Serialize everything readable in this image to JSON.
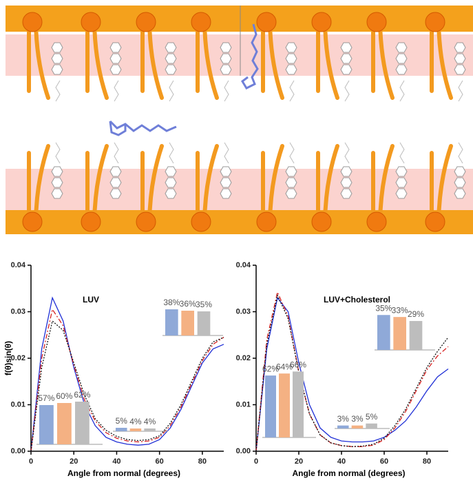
{
  "chart_data": [
    {
      "type": "line",
      "title": "LUV",
      "y_label": "f(θ)sin(θ)",
      "x_label": "Angle from normal (degrees)",
      "xlim": [
        0,
        90
      ],
      "ylim": [
        0,
        0.04
      ],
      "xticks": [
        0,
        20,
        40,
        60,
        80
      ],
      "yticks": [
        {
          "value": 0,
          "label": "0.00"
        },
        {
          "value": 0.01,
          "label": "0.01"
        },
        {
          "value": 0.02,
          "label": "0.02"
        },
        {
          "value": 0.03,
          "label": "0.03"
        },
        {
          "value": 0.04,
          "label": "0.04"
        }
      ],
      "x": [
        0,
        5,
        10,
        15,
        20,
        25,
        30,
        35,
        40,
        45,
        50,
        55,
        60,
        65,
        70,
        75,
        80,
        85,
        90
      ],
      "series": [
        {
          "color": "#1f2fd6",
          "dash": "solid",
          "values": [
            0,
            0.022,
            0.033,
            0.028,
            0.018,
            0.01,
            0.0055,
            0.003,
            0.002,
            0.0015,
            0.0013,
            0.0015,
            0.0025,
            0.005,
            0.009,
            0.014,
            0.019,
            0.022,
            0.023
          ]
        },
        {
          "color": "#d62020",
          "dash": "dashdot",
          "values": [
            0,
            0.02,
            0.0305,
            0.027,
            0.0185,
            0.011,
            0.0065,
            0.004,
            0.0028,
            0.0022,
            0.002,
            0.0022,
            0.003,
            0.0055,
            0.0095,
            0.0145,
            0.0195,
            0.023,
            0.0245
          ]
        },
        {
          "color": "#111111",
          "dash": "dotted",
          "values": [
            0,
            0.018,
            0.028,
            0.026,
            0.019,
            0.012,
            0.007,
            0.0045,
            0.0032,
            0.0025,
            0.0023,
            0.0025,
            0.0033,
            0.006,
            0.01,
            0.015,
            0.02,
            0.0235,
            0.0245
          ]
        }
      ],
      "inset_colors": [
        "#8fa9d8",
        "#f4b183",
        "#bdbdbd"
      ],
      "insets": [
        {
          "values": [
            57,
            60,
            62
          ],
          "value_labels": [
            "57%",
            "60%",
            "62%"
          ]
        },
        {
          "values": [
            5,
            4,
            4
          ],
          "value_labels": [
            "5%",
            "4%",
            "4%"
          ]
        },
        {
          "values": [
            38,
            36,
            35
          ],
          "value_labels": [
            "38%",
            "36%",
            "35%"
          ]
        }
      ]
    },
    {
      "type": "line",
      "title": "LUV+Cholesterol",
      "x_label": "Angle from normal (degrees)",
      "xlim": [
        0,
        90
      ],
      "ylim": [
        0,
        0.04
      ],
      "xticks": [
        0,
        20,
        40,
        60,
        80
      ],
      "yticks": [
        {
          "value": 0,
          "label": "0.00"
        },
        {
          "value": 0.01,
          "label": "0.01"
        },
        {
          "value": 0.02,
          "label": "0.02"
        },
        {
          "value": 0.03,
          "label": "0.03"
        },
        {
          "value": 0.04,
          "label": "0.04"
        }
      ],
      "x": [
        0,
        5,
        10,
        15,
        20,
        25,
        30,
        35,
        40,
        45,
        50,
        55,
        60,
        65,
        70,
        75,
        80,
        85,
        90
      ],
      "series": [
        {
          "color": "#1f2fd6",
          "dash": "solid",
          "values": [
            0,
            0.022,
            0.033,
            0.03,
            0.019,
            0.01,
            0.005,
            0.003,
            0.0022,
            0.002,
            0.002,
            0.0022,
            0.003,
            0.0045,
            0.0065,
            0.0095,
            0.013,
            0.016,
            0.0177
          ]
        },
        {
          "color": "#d62020",
          "dash": "dashdot",
          "values": [
            0,
            0.024,
            0.0342,
            0.029,
            0.017,
            0.008,
            0.0035,
            0.0018,
            0.0012,
            0.001,
            0.001,
            0.0013,
            0.0025,
            0.005,
            0.0085,
            0.013,
            0.0175,
            0.0205,
            0.0225
          ]
        },
        {
          "color": "#111111",
          "dash": "dotted",
          "values": [
            0,
            0.023,
            0.0335,
            0.0285,
            0.017,
            0.008,
            0.0035,
            0.0018,
            0.0012,
            0.001,
            0.0011,
            0.0015,
            0.0028,
            0.0055,
            0.009,
            0.0135,
            0.018,
            0.0215,
            0.0245
          ]
        }
      ],
      "inset_colors": [
        "#8fa9d8",
        "#f4b183",
        "#bdbdbd"
      ],
      "insets": [
        {
          "values": [
            62,
            64,
            66
          ],
          "value_labels": [
            "62%",
            "64%",
            "66%"
          ]
        },
        {
          "values": [
            3,
            3,
            5
          ],
          "value_labels": [
            "3%",
            "3%",
            "5%"
          ]
        },
        {
          "values": [
            35,
            33,
            29
          ],
          "value_labels": [
            "35%",
            "33%",
            "29%"
          ]
        }
      ]
    }
  ]
}
